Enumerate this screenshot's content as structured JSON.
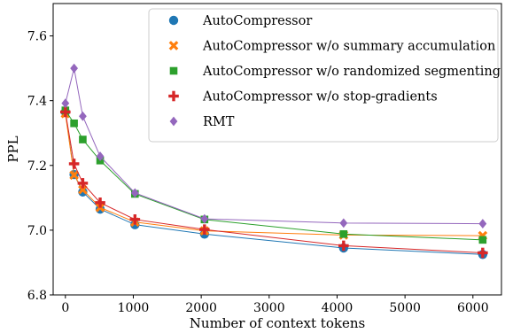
{
  "chart_data": {
    "type": "line",
    "xlabel": "Number of context tokens",
    "ylabel": "PPL",
    "xlim": [
      -180,
      6420
    ],
    "ylim": [
      6.8,
      7.7
    ],
    "xticks": [
      0,
      1000,
      2000,
      3000,
      4000,
      5000,
      6000
    ],
    "yticks": [
      6.8,
      7.0,
      7.2,
      7.4,
      7.6
    ],
    "ytick_labels": [
      "6.8",
      "7.0",
      "7.2",
      "7.4",
      "7.6"
    ],
    "grid": false,
    "legend_position": "top-right",
    "x": [
      0,
      128,
      256,
      512,
      1024,
      2048,
      4096,
      6144
    ],
    "series": [
      {
        "name": "AutoCompressor",
        "marker": "circle",
        "color": "#1f77b4",
        "values": [
          7.365,
          7.172,
          7.118,
          7.065,
          7.017,
          6.988,
          6.945,
          6.925
        ]
      },
      {
        "name": "AutoCompressor w/o summary accumulation",
        "marker": "x",
        "color": "#ff7f0e",
        "values": [
          7.36,
          7.17,
          7.125,
          7.07,
          7.025,
          6.998,
          6.985,
          6.983
        ]
      },
      {
        "name": "AutoCompressor w/o randomized segmenting",
        "marker": "square",
        "color": "#2ca02c",
        "values": [
          7.37,
          7.33,
          7.28,
          7.215,
          7.112,
          7.033,
          6.988,
          6.97
        ]
      },
      {
        "name": "AutoCompressor w/o stop-gradients",
        "marker": "plus",
        "color": "#d62728",
        "values": [
          7.365,
          7.205,
          7.145,
          7.085,
          7.033,
          7.002,
          6.952,
          6.93
        ]
      },
      {
        "name": "RMT",
        "marker": "diamond",
        "color": "#9467bd",
        "values": [
          7.392,
          7.5,
          7.352,
          7.228,
          7.115,
          7.035,
          7.022,
          7.02
        ]
      }
    ]
  }
}
